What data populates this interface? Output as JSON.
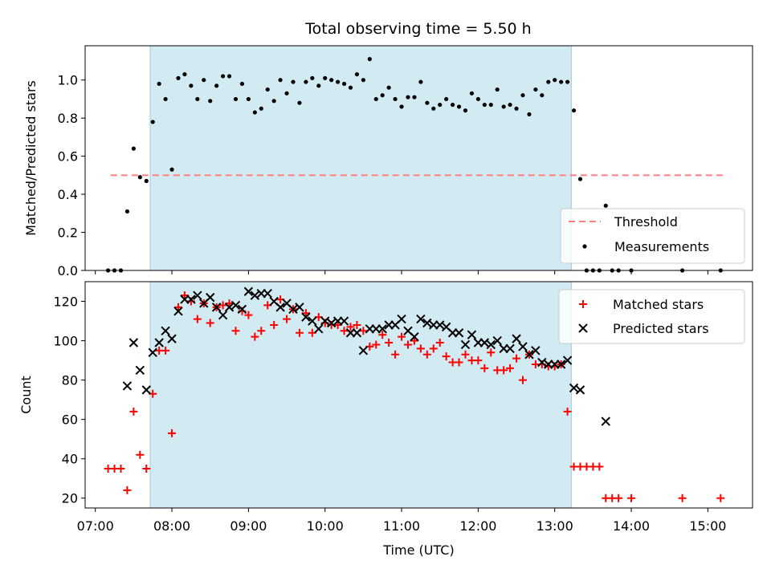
{
  "title": "Total observing time = 5.50 h",
  "chart_data": [
    {
      "type": "scatter",
      "ylabel": "Matched/Predicted stars",
      "ylim": [
        0,
        1.18
      ],
      "xlim": [
        "06:52",
        "15:35"
      ],
      "yticks": [
        "0.0",
        "0.2",
        "0.4",
        "0.6",
        "0.8",
        "1.0"
      ],
      "ytick_values": [
        0,
        0.2,
        0.4,
        0.6,
        0.8,
        1.0
      ],
      "shaded_interval": [
        "07:43",
        "13:13"
      ],
      "threshold": {
        "name": "Threshold",
        "value": 0.5,
        "x_range": [
          "07:12",
          "15:12"
        ],
        "color": "#ff7f7f"
      },
      "legend": [
        "Threshold",
        "Measurements"
      ],
      "legend_placement": "lower-right",
      "series": [
        {
          "name": "Measurements",
          "color": "#000000",
          "x": [
            "07:10",
            "07:15",
            "07:20",
            "07:25",
            "07:30",
            "07:35",
            "07:40",
            "07:45",
            "07:50",
            "07:55",
            "08:00",
            "08:05",
            "08:10",
            "08:15",
            "08:20",
            "08:25",
            "08:30",
            "08:35",
            "08:40",
            "08:45",
            "08:50",
            "08:55",
            "09:00",
            "09:05",
            "09:10",
            "09:15",
            "09:20",
            "09:25",
            "09:30",
            "09:35",
            "09:40",
            "09:45",
            "09:50",
            "09:55",
            "10:00",
            "10:05",
            "10:10",
            "10:15",
            "10:20",
            "10:25",
            "10:30",
            "10:35",
            "10:40",
            "10:45",
            "10:50",
            "10:55",
            "11:00",
            "11:05",
            "11:10",
            "11:15",
            "11:20",
            "11:25",
            "11:30",
            "11:35",
            "11:40",
            "11:45",
            "11:50",
            "11:55",
            "12:00",
            "12:05",
            "12:10",
            "12:15",
            "12:20",
            "12:25",
            "12:30",
            "12:35",
            "12:40",
            "12:45",
            "12:50",
            "12:55",
            "13:00",
            "13:05",
            "13:10",
            "13:15",
            "13:20",
            "13:25",
            "13:30",
            "13:35",
            "13:40",
            "13:45",
            "13:50",
            "14:00",
            "14:40",
            "15:10"
          ],
          "y": [
            0.0,
            0.0,
            0.0,
            0.31,
            0.64,
            0.49,
            0.47,
            0.78,
            0.98,
            0.9,
            0.53,
            1.01,
            1.03,
            0.97,
            0.9,
            1.0,
            0.89,
            0.97,
            1.02,
            1.02,
            0.9,
            0.98,
            0.9,
            0.83,
            0.85,
            0.95,
            0.89,
            1.0,
            0.93,
            0.99,
            0.88,
            0.99,
            1.01,
            0.97,
            1.01,
            1.0,
            0.99,
            0.98,
            0.96,
            1.03,
            1.0,
            1.11,
            0.9,
            0.92,
            0.96,
            0.9,
            0.86,
            0.91,
            0.91,
            0.99,
            0.88,
            0.85,
            0.87,
            0.9,
            0.87,
            0.86,
            0.84,
            0.93,
            0.9,
            0.87,
            0.87,
            0.95,
            0.86,
            0.87,
            0.85,
            0.92,
            0.82,
            0.95,
            0.92,
            0.99,
            1.0,
            0.99,
            0.99,
            0.84,
            0.48,
            0.0,
            0.0,
            0.0,
            0.34,
            0.0,
            0.0,
            0.0,
            0.0,
            0.0
          ]
        }
      ]
    },
    {
      "type": "scatter",
      "xlabel": "Time (UTC)",
      "ylabel": "Count",
      "ylim": [
        15,
        130
      ],
      "xlim": [
        "06:52",
        "15:35"
      ],
      "yticks": [
        "20",
        "40",
        "60",
        "80",
        "100",
        "120"
      ],
      "ytick_values": [
        20,
        40,
        60,
        80,
        100,
        120
      ],
      "xticks": [
        "07:00",
        "08:00",
        "09:00",
        "10:00",
        "11:00",
        "12:00",
        "13:00",
        "14:00",
        "15:00"
      ],
      "shaded_interval": [
        "07:43",
        "13:13"
      ],
      "legend": [
        "Matched stars",
        "Predicted stars"
      ],
      "legend_placement": "upper-right",
      "series": [
        {
          "name": "Matched stars",
          "marker": "plus",
          "color": "#ff0000",
          "x": [
            "07:10",
            "07:15",
            "07:20",
            "07:25",
            "07:30",
            "07:35",
            "07:40",
            "07:45",
            "07:50",
            "07:55",
            "08:00",
            "08:05",
            "08:10",
            "08:15",
            "08:20",
            "08:25",
            "08:30",
            "08:35",
            "08:40",
            "08:45",
            "08:50",
            "08:55",
            "09:00",
            "09:05",
            "09:10",
            "09:15",
            "09:20",
            "09:25",
            "09:30",
            "09:35",
            "09:40",
            "09:45",
            "09:50",
            "09:55",
            "10:00",
            "10:05",
            "10:10",
            "10:15",
            "10:20",
            "10:25",
            "10:30",
            "10:35",
            "10:40",
            "10:45",
            "10:50",
            "10:55",
            "11:00",
            "11:05",
            "11:10",
            "11:15",
            "11:20",
            "11:25",
            "11:30",
            "11:35",
            "11:40",
            "11:45",
            "11:50",
            "11:55",
            "12:00",
            "12:05",
            "12:10",
            "12:15",
            "12:20",
            "12:25",
            "12:30",
            "12:35",
            "12:40",
            "12:45",
            "12:50",
            "12:55",
            "13:00",
            "13:05",
            "13:10",
            "13:15",
            "13:20",
            "13:25",
            "13:30",
            "13:35",
            "13:40",
            "13:45",
            "13:50",
            "14:00",
            "14:40",
            "15:10"
          ],
          "y": [
            35,
            35,
            35,
            24,
            64,
            42,
            35,
            73,
            95,
            95,
            53,
            117,
            123,
            120,
            111,
            119,
            109,
            117,
            118,
            119,
            105,
            115,
            113,
            102,
            105,
            118,
            108,
            121,
            111,
            116,
            104,
            114,
            104,
            112,
            109,
            108,
            108,
            105,
            107,
            108,
            105,
            97,
            98,
            103,
            99,
            93,
            102,
            98,
            100,
            96,
            93,
            96,
            99,
            92,
            89,
            89,
            93,
            90,
            90,
            86,
            94,
            85,
            85,
            86,
            91,
            80,
            93,
            88,
            88,
            87,
            87,
            88,
            64,
            36,
            36,
            36,
            36,
            36,
            20,
            20,
            20,
            20,
            20,
            20
          ]
        },
        {
          "name": "Predicted stars",
          "marker": "cross",
          "color": "#000000",
          "x": [
            "07:25",
            "07:30",
            "07:35",
            "07:40",
            "07:45",
            "07:50",
            "07:55",
            "08:00",
            "08:05",
            "08:10",
            "08:15",
            "08:20",
            "08:25",
            "08:30",
            "08:35",
            "08:40",
            "08:45",
            "08:50",
            "08:55",
            "09:00",
            "09:05",
            "09:10",
            "09:15",
            "09:20",
            "09:25",
            "09:30",
            "09:35",
            "09:40",
            "09:45",
            "09:50",
            "09:55",
            "10:00",
            "10:05",
            "10:10",
            "10:15",
            "10:20",
            "10:25",
            "10:30",
            "10:35",
            "10:40",
            "10:45",
            "10:50",
            "10:55",
            "11:00",
            "11:05",
            "11:10",
            "11:15",
            "11:20",
            "11:25",
            "11:30",
            "11:35",
            "11:40",
            "11:45",
            "11:50",
            "11:55",
            "12:00",
            "12:05",
            "12:10",
            "12:15",
            "12:20",
            "12:25",
            "12:30",
            "12:35",
            "12:40",
            "12:45",
            "12:50",
            "12:55",
            "13:00",
            "13:05",
            "13:10",
            "13:15",
            "13:20",
            "13:40"
          ],
          "y": [
            77,
            99,
            85,
            75,
            94,
            99,
            105,
            101,
            115,
            121,
            121,
            123,
            119,
            122,
            117,
            113,
            117,
            118,
            116,
            125,
            123,
            124,
            124,
            120,
            117,
            119,
            116,
            117,
            112,
            110,
            106,
            110,
            109,
            110,
            110,
            104,
            104,
            95,
            106,
            106,
            106,
            108,
            108,
            111,
            105,
            102,
            111,
            109,
            108,
            108,
            107,
            104,
            104,
            98,
            103,
            99,
            99,
            98,
            100,
            96,
            96,
            101,
            97,
            93,
            95,
            89,
            88,
            88,
            88,
            90,
            76,
            75,
            59
          ]
        }
      ]
    }
  ]
}
